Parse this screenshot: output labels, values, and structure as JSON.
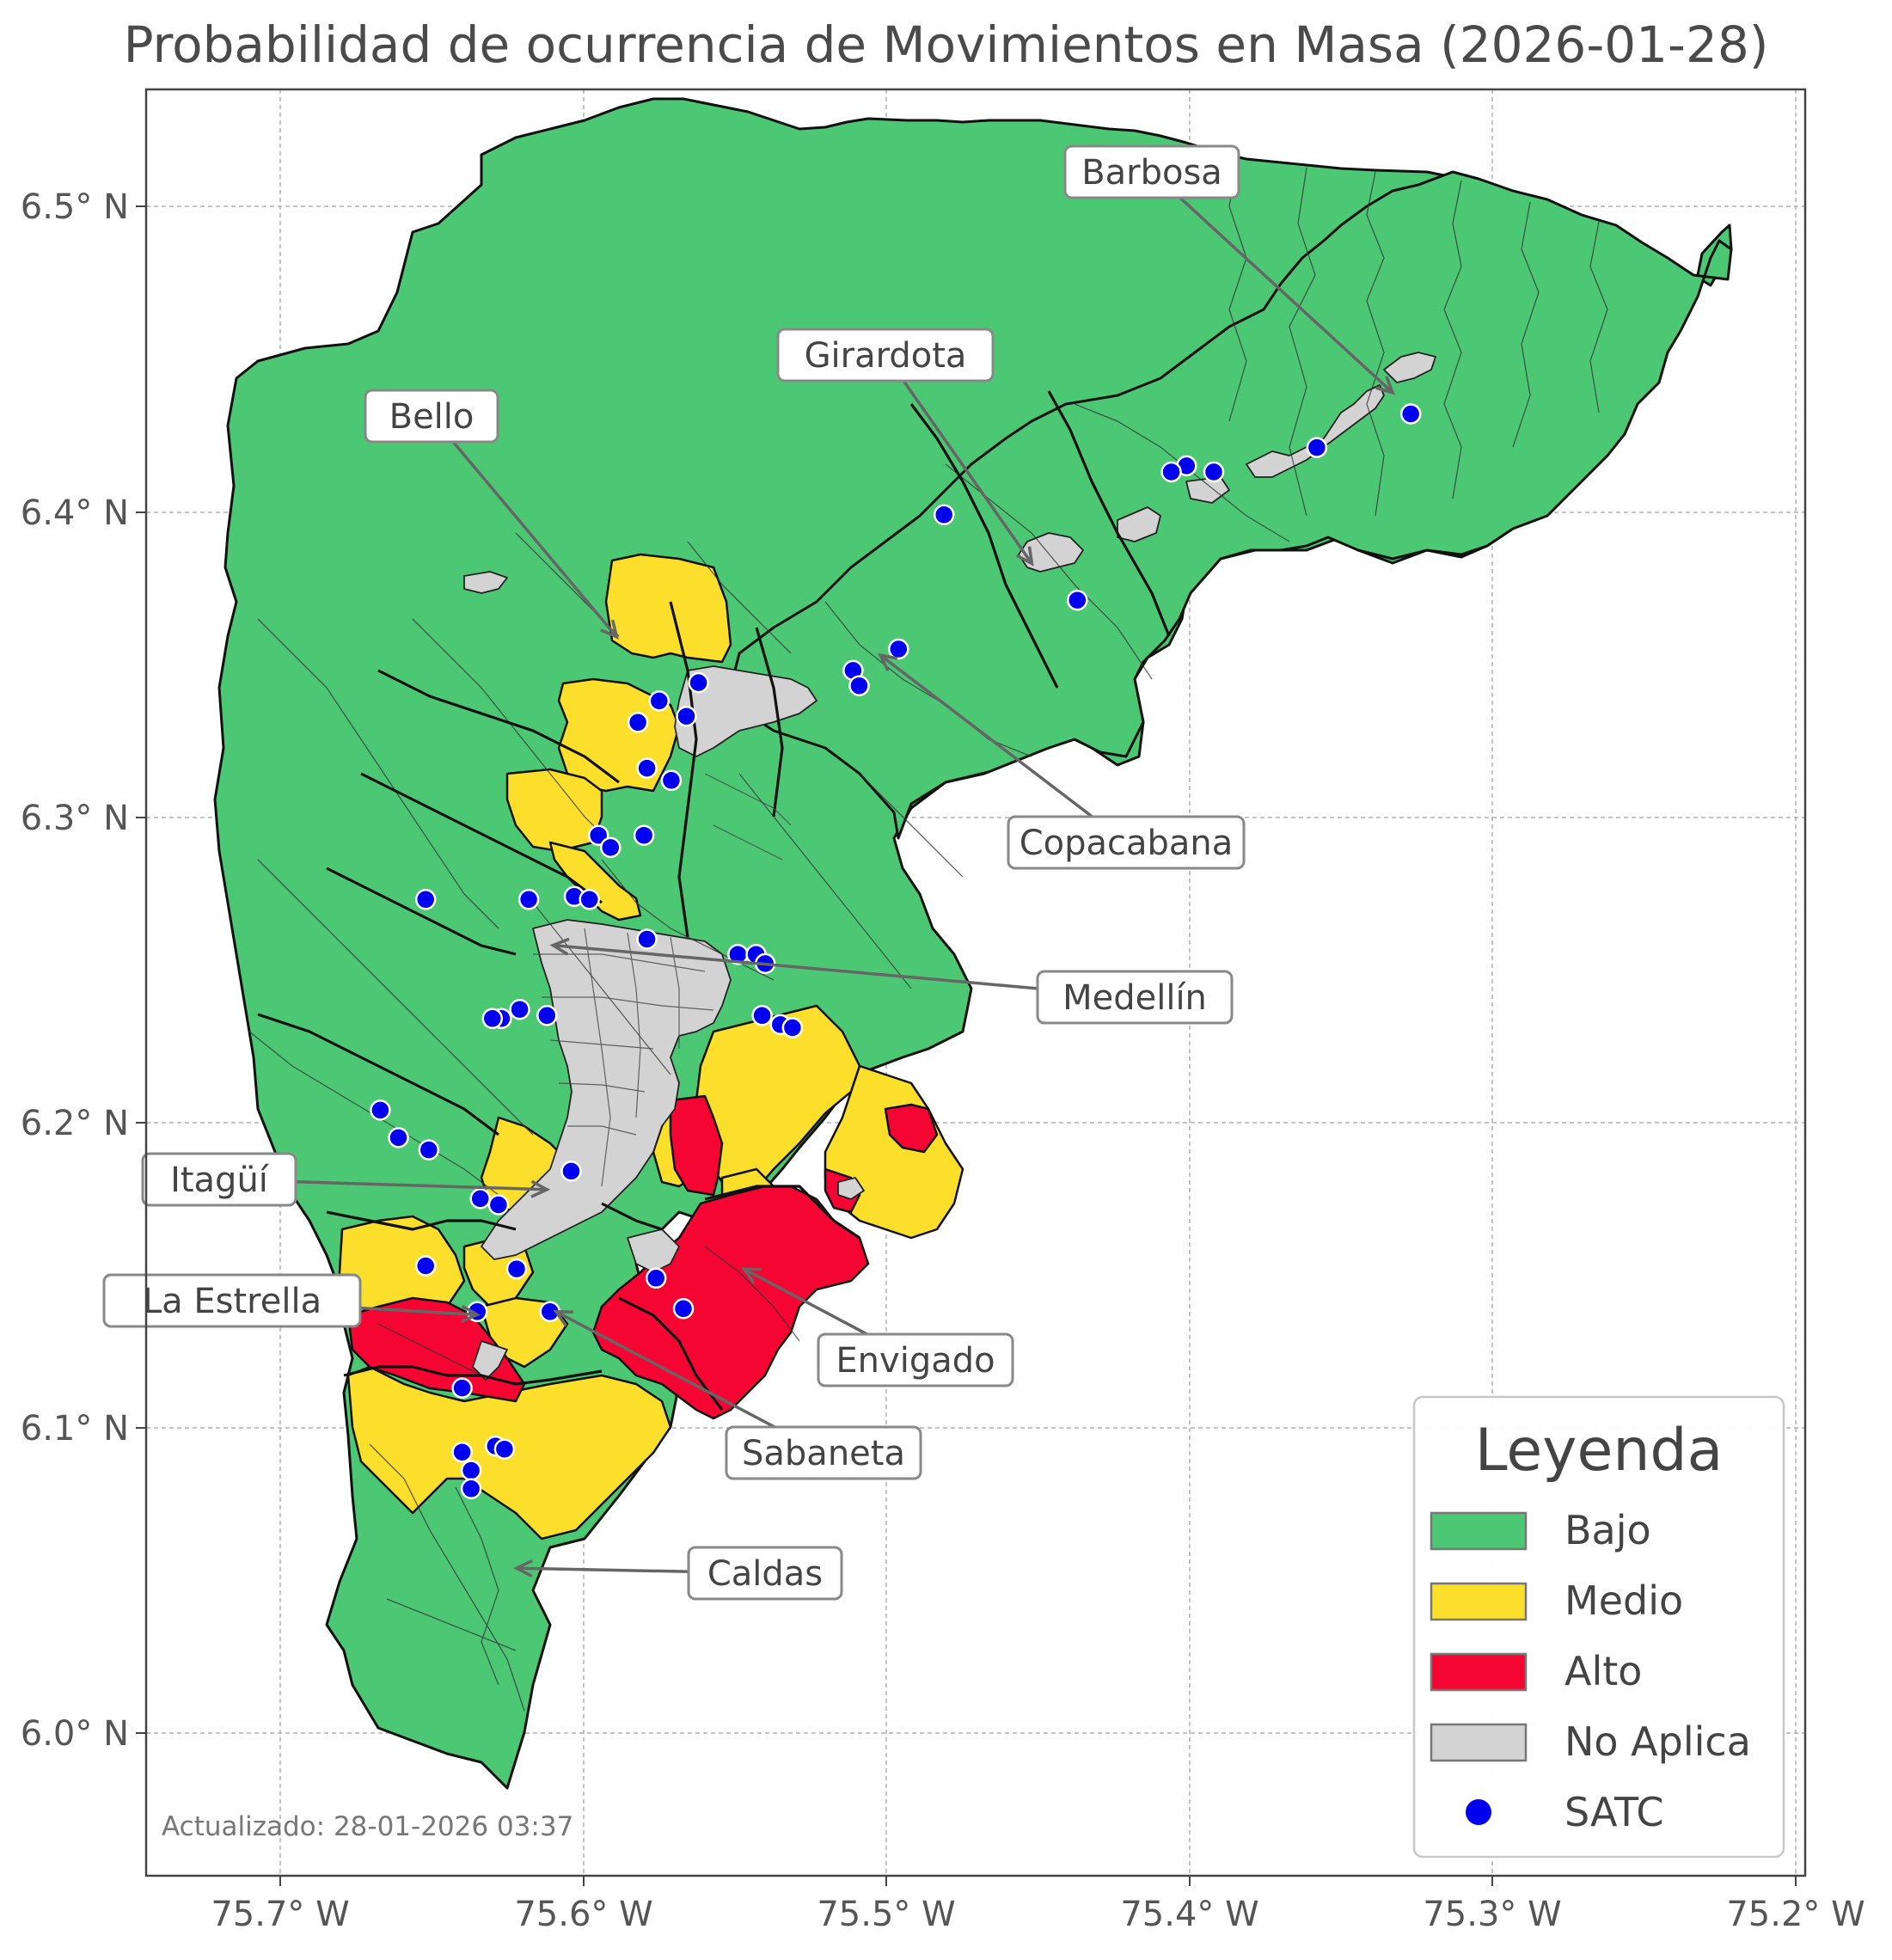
{
  "title": "Probabilidad de ocurrencia de Movimientos en Masa (2026-01-28)",
  "footer": "Actualizado: 28-01-2026 03:37",
  "axes": {
    "x_ticks": [
      "75.7° W",
      "75.6° W",
      "75.5° W",
      "75.4° W",
      "75.3° W",
      "75.2° W"
    ],
    "y_ticks": [
      "6.5° N",
      "6.4° N",
      "6.3° N",
      "6.2° N",
      "6.1° N",
      "6.0° N"
    ],
    "lon_range": [
      -75.745,
      -75.195
    ],
    "lat_range": [
      5.955,
      6.535
    ],
    "grid": true
  },
  "colors": {
    "bajo": "#4cc774",
    "medio": "#fbdf2a",
    "alto": "#f50531",
    "no_aplica": "#d3d3d3",
    "satc": "#0000ee"
  },
  "municipalities": [
    {
      "name": "Barbosa",
      "lon": -75.333,
      "lat": 6.439
    },
    {
      "name": "Girardota",
      "lon": -75.452,
      "lat": 6.383
    },
    {
      "name": "Bello",
      "lon": -75.589,
      "lat": 6.359
    },
    {
      "name": "Copacabana",
      "lon": -75.502,
      "lat": 6.353
    },
    {
      "name": "Medellín",
      "lon": -75.61,
      "lat": 6.258
    },
    {
      "name": "Itagüí",
      "lon": -75.612,
      "lat": 6.178
    },
    {
      "name": "La Estrella",
      "lon": -75.635,
      "lat": 6.137
    },
    {
      "name": "Envigado",
      "lon": -75.547,
      "lat": 6.152
    },
    {
      "name": "Sabaneta",
      "lon": -75.609,
      "lat": 6.138
    },
    {
      "name": "Caldas",
      "lon": -75.622,
      "lat": 6.054
    }
  ],
  "legend": {
    "title": "Leyenda",
    "items": [
      {
        "label": "Bajo",
        "color": "#4cc774",
        "kind": "patch"
      },
      {
        "label": "Medio",
        "color": "#fbdf2a",
        "kind": "patch"
      },
      {
        "label": "Alto",
        "color": "#f50531",
        "kind": "patch"
      },
      {
        "label": "No Aplica",
        "color": "#d3d3d3",
        "kind": "patch"
      },
      {
        "label": "SATC",
        "color": "#0000ee",
        "kind": "point"
      }
    ]
  },
  "satc_stations": [
    [
      -75.327,
      6.432
    ],
    [
      -75.358,
      6.421
    ],
    [
      -75.392,
      6.413
    ],
    [
      -75.401,
      6.415
    ],
    [
      -75.406,
      6.413
    ],
    [
      -75.481,
      6.399
    ],
    [
      -75.437,
      6.371
    ],
    [
      -75.496,
      6.355
    ],
    [
      -75.511,
      6.348
    ],
    [
      -75.509,
      6.343
    ],
    [
      -75.562,
      6.344
    ],
    [
      -75.566,
      6.333
    ],
    [
      -75.575,
      6.338
    ],
    [
      -75.582,
      6.331
    ],
    [
      -75.579,
      6.316
    ],
    [
      -75.571,
      6.312
    ],
    [
      -75.595,
      6.294
    ],
    [
      -75.591,
      6.29
    ],
    [
      -75.58,
      6.294
    ],
    [
      -75.652,
      6.273
    ],
    [
      -75.618,
      6.273
    ],
    [
      -75.603,
      6.274
    ],
    [
      -75.598,
      6.273
    ],
    [
      -75.579,
      6.26
    ],
    [
      -75.549,
      6.255
    ],
    [
      -75.543,
      6.255
    ],
    [
      -75.54,
      6.252
    ],
    [
      -75.541,
      6.235
    ],
    [
      -75.535,
      6.232
    ],
    [
      -75.531,
      6.231
    ],
    [
      -75.621,
      6.237
    ],
    [
      -75.612,
      6.235
    ],
    [
      -75.627,
      6.234
    ],
    [
      -75.63,
      6.234
    ],
    [
      -75.667,
      6.204
    ],
    [
      -75.661,
      6.195
    ],
    [
      -75.651,
      6.191
    ],
    [
      -75.604,
      6.184
    ],
    [
      -75.634,
      6.175
    ],
    [
      -75.628,
      6.173
    ],
    [
      -75.652,
      6.153
    ],
    [
      -75.622,
      6.152
    ],
    [
      -75.576,
      6.149
    ],
    [
      -75.567,
      6.139
    ],
    [
      -75.611,
      6.138
    ],
    [
      -75.635,
      6.138
    ],
    [
      -75.64,
      6.113
    ],
    [
      -75.64,
      6.092
    ],
    [
      -75.629,
      6.094
    ],
    [
      -75.626,
      6.093
    ],
    [
      -75.637,
      6.086
    ],
    [
      -75.637,
      6.08
    ]
  ]
}
